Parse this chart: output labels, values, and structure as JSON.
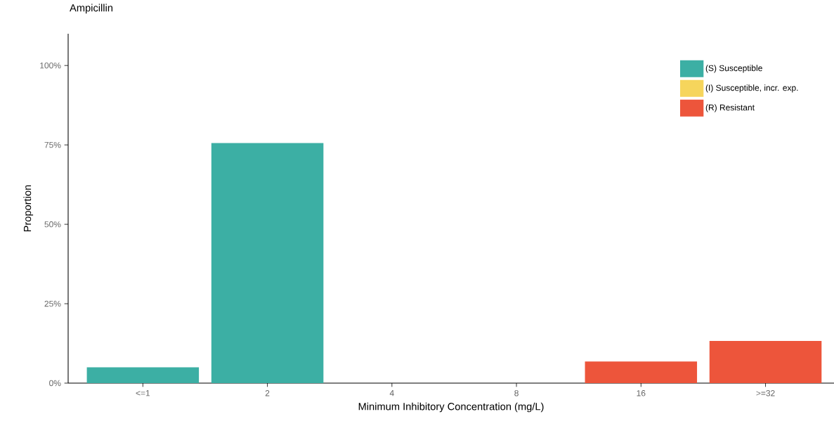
{
  "chart_data": {
    "type": "bar",
    "title": "Ampicillin",
    "xlabel": "Minimum Inhibitory Concentration (mg/L)",
    "ylabel": "Proportion",
    "categories": [
      "<=1",
      "2",
      "4",
      "8",
      "16",
      ">=32"
    ],
    "series": [
      {
        "name": "(S) Susceptible",
        "color": "#3cafa4",
        "values": [
          5.0,
          75.6,
          null,
          null,
          null,
          null
        ]
      },
      {
        "name": "(I) Susceptible, incr. exp.",
        "color": "#f6d55c",
        "values": [
          null,
          null,
          null,
          null,
          null,
          null
        ]
      },
      {
        "name": "(R) Resistant",
        "color": "#ed553b",
        "values": [
          null,
          null,
          null,
          null,
          6.8,
          13.3
        ]
      }
    ],
    "stacked": true,
    "ylim": [
      0,
      110
    ],
    "yticks": [
      {
        "value": 0,
        "label": "0%"
      },
      {
        "value": 25,
        "label": "25%"
      },
      {
        "value": 50,
        "label": "50%"
      },
      {
        "value": 75,
        "label": "75%"
      },
      {
        "value": 100,
        "label": "100%"
      }
    ],
    "grid": false,
    "legend": "top right"
  }
}
